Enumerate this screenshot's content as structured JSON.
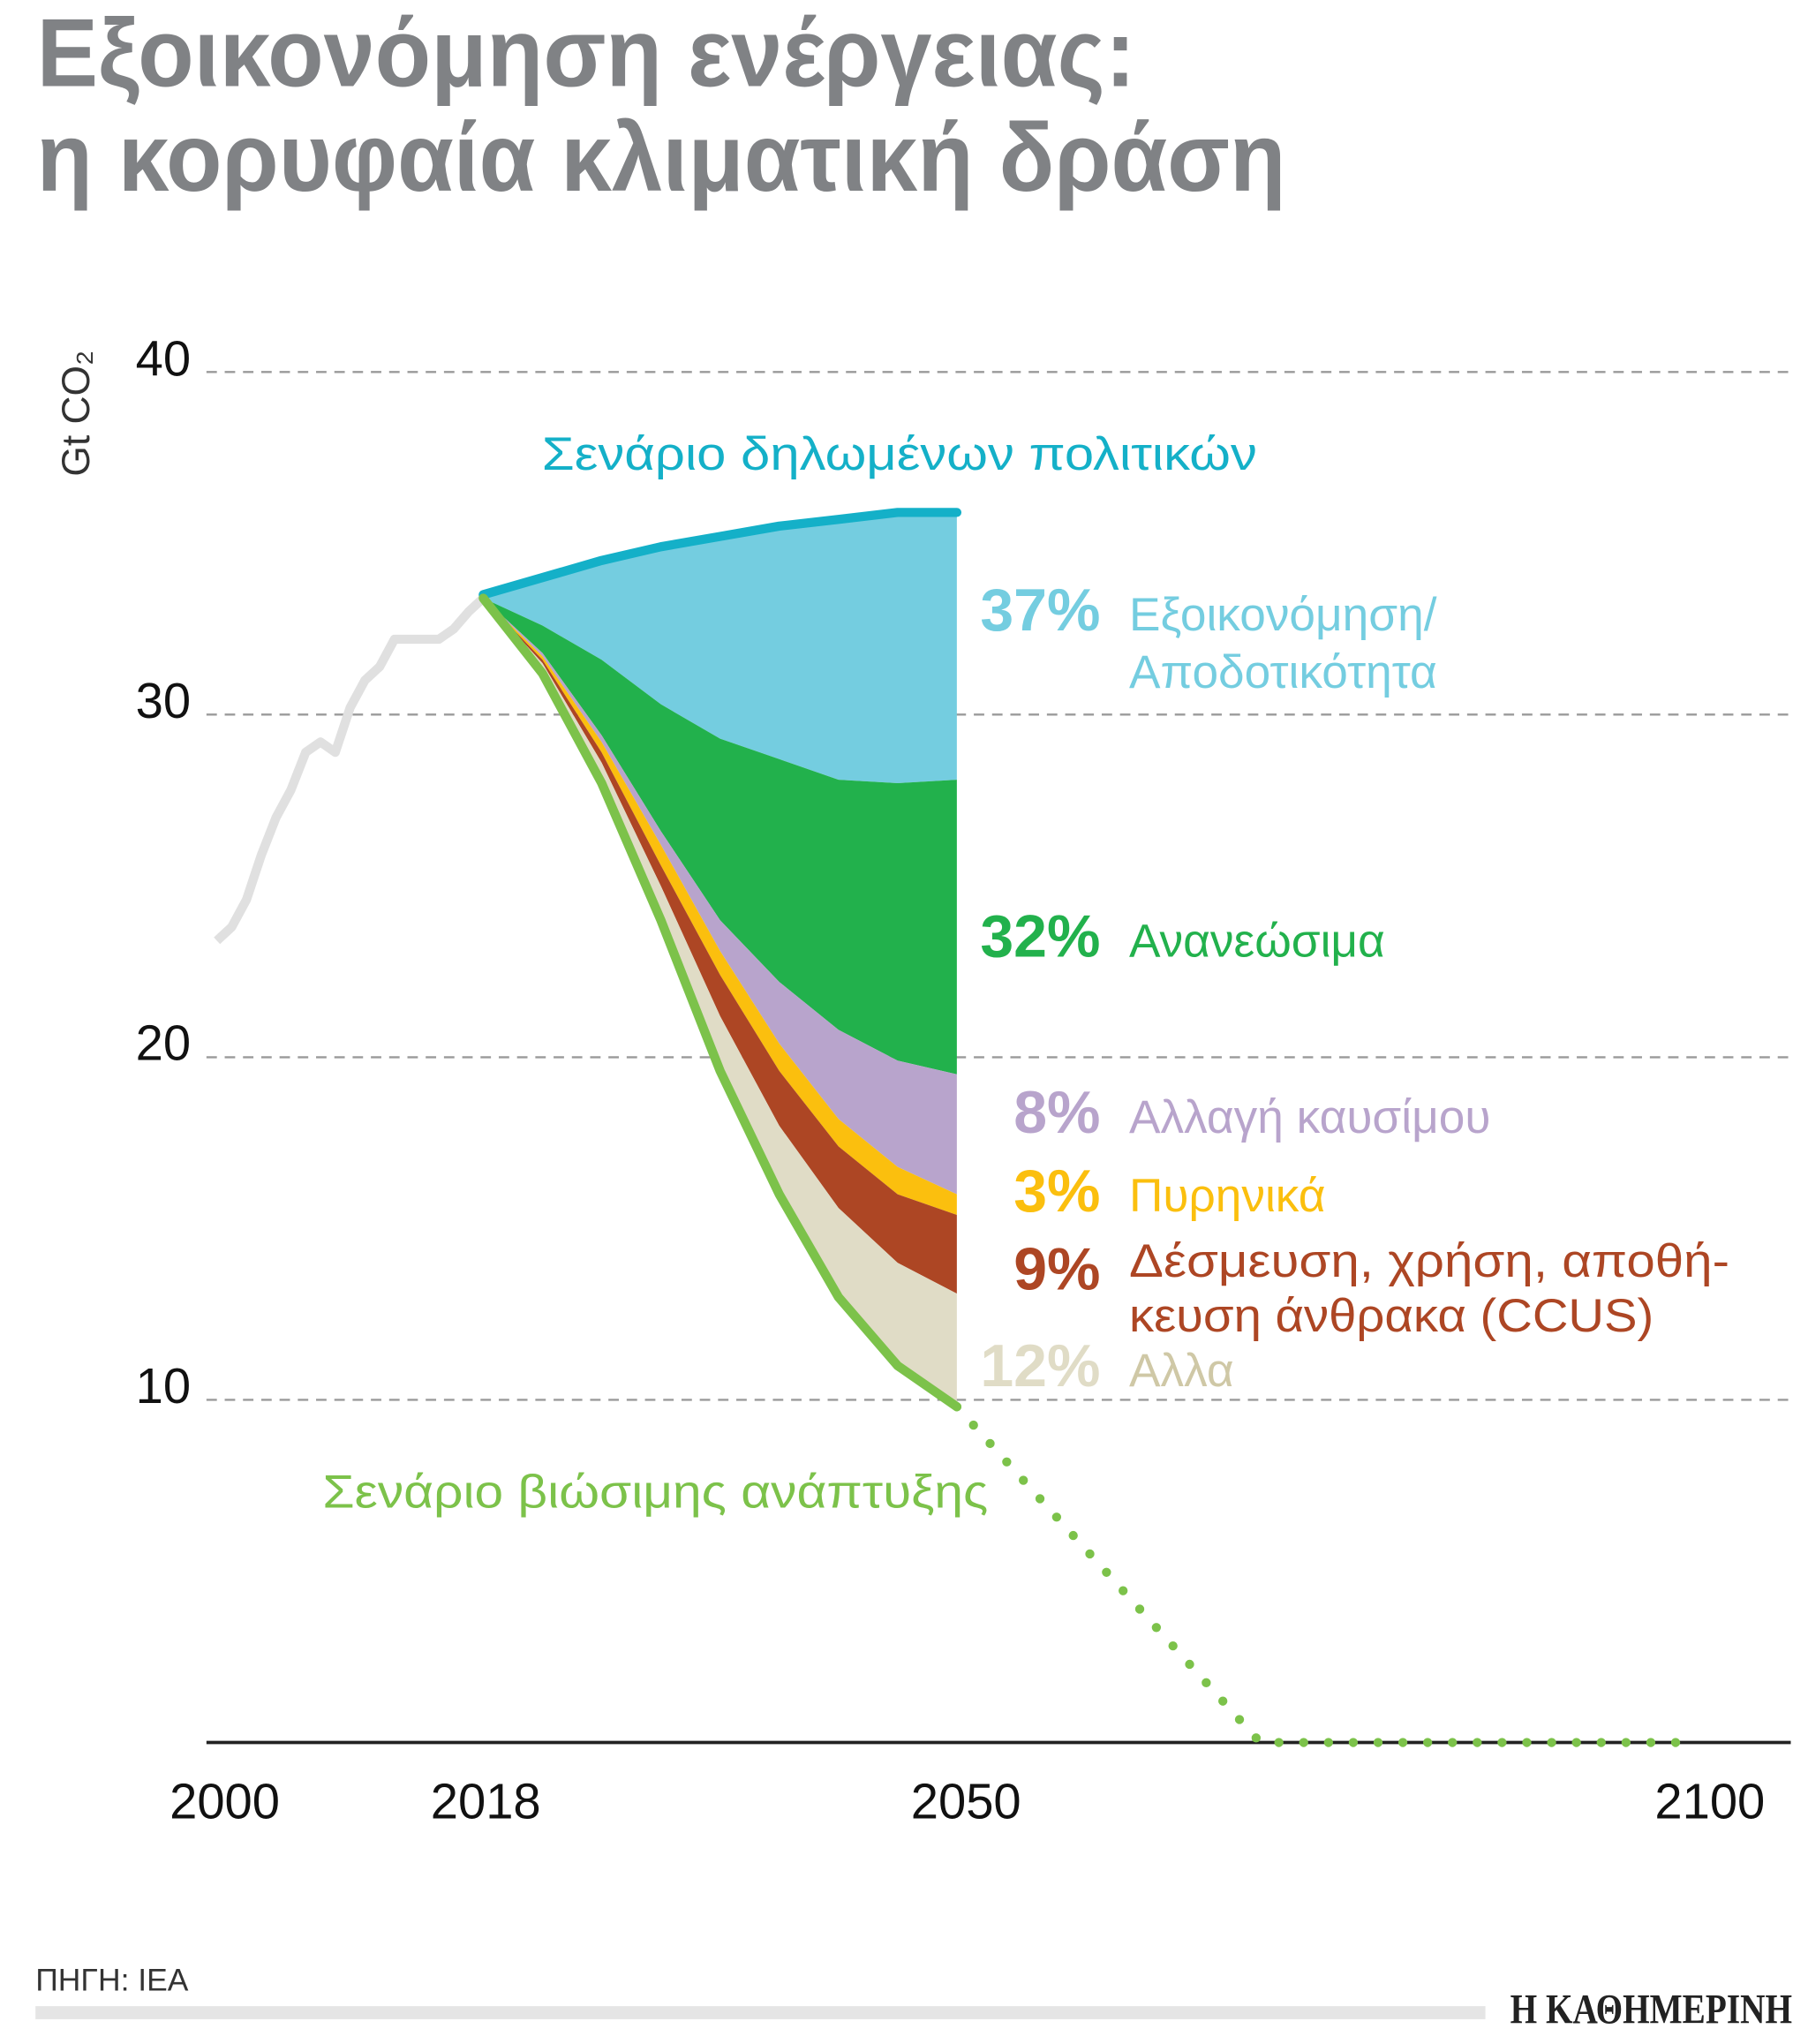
{
  "title": {
    "line1": "Εξοικονόμηση ενέργειας:",
    "line2": "η κορυφαία κλιματική δράση"
  },
  "source": "ΠΗΓΗ: IEA",
  "logo": "Η ΚΑΘΗΜΕΡΙΝΗ",
  "chart_data": {
    "type": "area",
    "ylabel": "Gt CO₂",
    "ylim": [
      0,
      40
    ],
    "xlim": [
      2000,
      2100
    ],
    "y_ticks": [
      "10",
      "20",
      "30",
      "40"
    ],
    "x_ticks": [
      "2000",
      "2018",
      "2050",
      "2100"
    ],
    "grid": true,
    "colors": {
      "historical": "#e0e0e0",
      "stated": "#14b0c8",
      "efficiency": "#74cde0",
      "renewables": "#22b14c",
      "fuel_switching": "#b8a4cc",
      "nuclear": "#fbbf0e",
      "ccus": "#ad4624",
      "other": "#e0dcc6",
      "sustainable": "#7cc24a"
    },
    "historical": {
      "x": [
        2000,
        2001,
        2002,
        2003,
        2004,
        2005,
        2006,
        2007,
        2008,
        2009,
        2010,
        2011,
        2012,
        2013,
        2014,
        2015,
        2016,
        2017,
        2018
      ],
      "y": [
        23.4,
        23.8,
        24.6,
        25.9,
        27.0,
        27.8,
        28.9,
        29.2,
        28.9,
        30.2,
        31.0,
        31.4,
        32.2,
        32.2,
        32.2,
        32.2,
        32.5,
        33.0,
        33.4
      ]
    },
    "projection_years": [
      2018,
      2022,
      2026,
      2030,
      2034,
      2038,
      2042,
      2046,
      2050
    ],
    "stated_policies": {
      "name": "Σενάριο δηλωμένων πολιτικών",
      "y": [
        33.5,
        34.0,
        34.5,
        34.9,
        35.2,
        35.5,
        35.7,
        35.9,
        35.9
      ]
    },
    "sustainable_development": {
      "name": "Σενάριο βιώσιμης ανάπτυξης",
      "y": [
        33.4,
        31.2,
        28.0,
        24.0,
        19.6,
        16.0,
        13.0,
        11.0,
        9.8
      ],
      "extension": {
        "x": [
          2050,
          2070.5,
          2100
        ],
        "y": [
          9.8,
          0,
          0
        ]
      }
    },
    "wedges": [
      {
        "key": "efficiency",
        "pct": "37%",
        "label": [
          "Εξοικονόμηση/",
          "Αποδοτικότητα"
        ],
        "top": [
          33.5,
          34.0,
          34.5,
          34.9,
          35.2,
          35.5,
          35.7,
          35.9,
          35.9
        ]
      },
      {
        "key": "renewables",
        "pct": "32%",
        "label": [
          "Ανανεώσιμα"
        ],
        "top": [
          33.4,
          32.6,
          31.6,
          30.3,
          29.3,
          28.7,
          28.1,
          28.0,
          28.1
        ]
      },
      {
        "key": "fuel_switching",
        "pct": "8%",
        "label": [
          "Αλλαγή καυσίμου"
        ],
        "top": [
          33.4,
          31.8,
          29.4,
          26.6,
          24.0,
          22.2,
          20.8,
          19.9,
          19.5
        ]
      },
      {
        "key": "nuclear",
        "pct": "3%",
        "label": [
          "Πυρηνικά"
        ],
        "top": [
          33.4,
          31.7,
          29.2,
          26.2,
          23.1,
          20.4,
          18.2,
          16.8,
          16.0
        ]
      },
      {
        "key": "ccus",
        "pct": "9%",
        "label": [
          "Δέσμευση, χρήση, αποθή-",
          "κευση άνθρακα (CCUS)"
        ],
        "top": [
          33.4,
          31.6,
          28.9,
          25.6,
          22.4,
          19.6,
          17.4,
          16.0,
          15.4
        ]
      },
      {
        "key": "other",
        "pct": "12%",
        "label": [
          "Αλλα"
        ],
        "top": [
          33.4,
          31.5,
          28.6,
          25.0,
          21.2,
          18.0,
          15.6,
          14.0,
          13.1
        ]
      }
    ]
  }
}
